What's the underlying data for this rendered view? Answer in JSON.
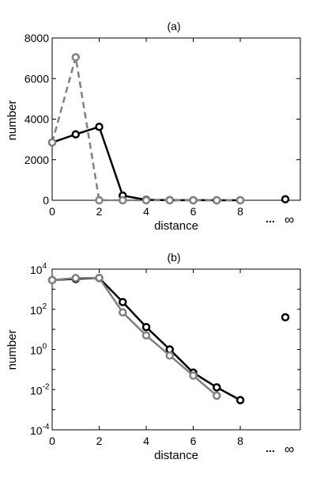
{
  "chart_data": [
    {
      "type": "line",
      "title": "(a)",
      "xlabel": "distance",
      "ylabel": "number",
      "xlim": [
        0,
        8
      ],
      "ylim": [
        0,
        8000
      ],
      "x_tick_labels": [
        "0",
        "2",
        "4",
        "6",
        "8",
        "...",
        "∞"
      ],
      "y_tick_labels": [
        "0",
        "2000",
        "4000",
        "6000",
        "8000"
      ],
      "series": [
        {
          "style": "solid",
          "color": "#000000",
          "x": [
            0,
            1,
            2,
            3,
            4,
            5,
            6,
            7,
            8,
            "∞"
          ],
          "values": [
            2850,
            3250,
            3620,
            230,
            20,
            5,
            2,
            1,
            1,
            50
          ]
        },
        {
          "style": "dashed",
          "color": "#808080",
          "x": [
            0,
            1,
            2,
            3,
            4,
            5,
            6,
            7,
            8
          ],
          "values": [
            2850,
            7050,
            0,
            0,
            0,
            0,
            0,
            0,
            0
          ]
        }
      ]
    },
    {
      "type": "line",
      "title": "(b)",
      "xlabel": "distance",
      "ylabel": "number",
      "y_scale": "log",
      "xlim": [
        0,
        8
      ],
      "ylim": [
        0.0001,
        10000
      ],
      "x_tick_labels": [
        "0",
        "2",
        "4",
        "6",
        "8",
        "...",
        "∞"
      ],
      "y_tick_labels": [
        {
          "base": "10",
          "exp": "4"
        },
        {
          "base": "10",
          "exp": "2"
        },
        {
          "base": "10",
          "exp": "0"
        },
        {
          "base": "10",
          "exp": "-2"
        },
        {
          "base": "10",
          "exp": "-4"
        }
      ],
      "series": [
        {
          "style": "solid",
          "color": "#000000",
          "x": [
            0,
            1,
            2,
            3,
            4,
            5,
            6,
            7,
            8,
            "∞"
          ],
          "values": [
            2850,
            3250,
            3620,
            230,
            13,
            1,
            0.07,
            0.013,
            0.003,
            40
          ]
        },
        {
          "style": "solid",
          "color": "#808080",
          "x": [
            0,
            1,
            2,
            3,
            4,
            5,
            6,
            7
          ],
          "values": [
            2850,
            3600,
            3650,
            70,
            5,
            0.5,
            0.05,
            0.005
          ]
        }
      ]
    }
  ]
}
